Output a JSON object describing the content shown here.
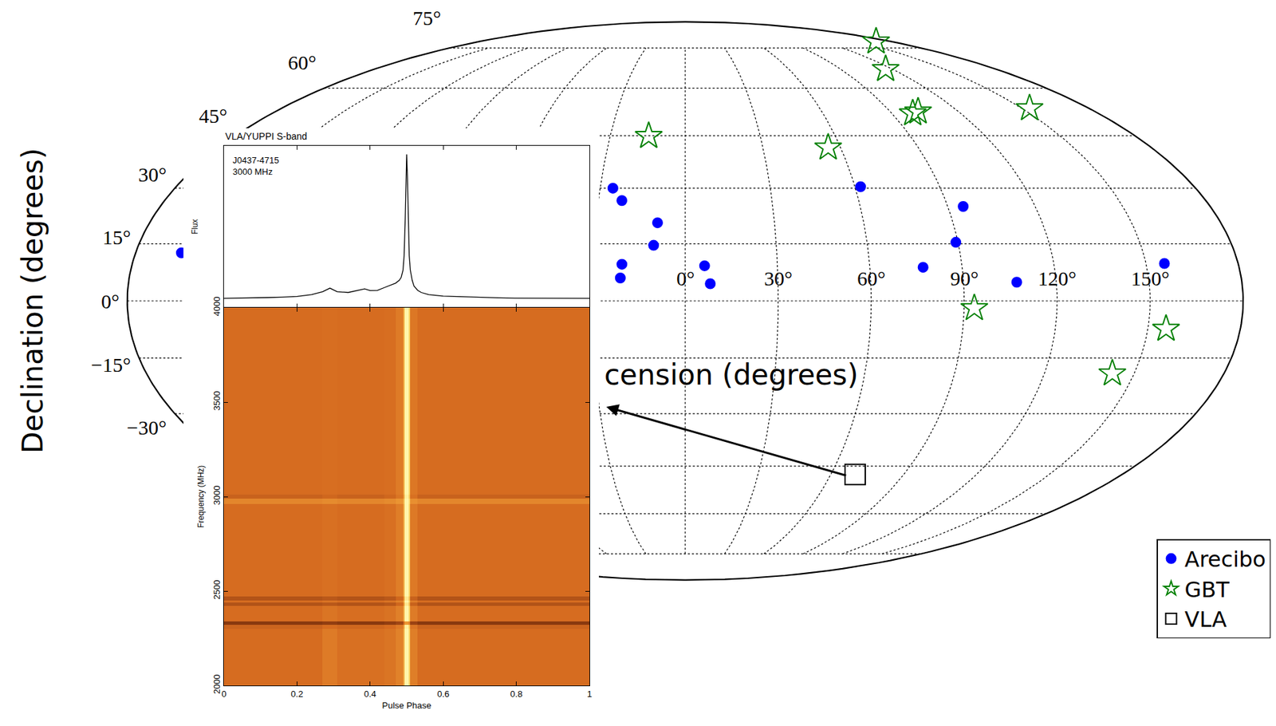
{
  "chart_data": [
    {
      "type": "scatter",
      "x_label": "cension (degrees)",
      "y_label": "Declination (degrees)",
      "xlim": [
        -180,
        180
      ],
      "ylim": [
        -90,
        90
      ],
      "xticks": [
        {
          "value": 0,
          "label": "0°"
        },
        {
          "value": 30,
          "label": "30°"
        },
        {
          "value": 60,
          "label": "60°"
        },
        {
          "value": 90,
          "label": "90°"
        },
        {
          "value": 120,
          "label": "120°"
        },
        {
          "value": 150,
          "label": "150°"
        }
      ],
      "yticks": [
        {
          "value": 75,
          "label": "75°"
        },
        {
          "value": 60,
          "label": "60°"
        },
        {
          "value": 45,
          "label": "45°"
        },
        {
          "value": 30,
          "label": "30°"
        },
        {
          "value": 15,
          "label": "15°"
        },
        {
          "value": 0,
          "label": "0°"
        },
        {
          "value": -15,
          "label": "−15°"
        },
        {
          "value": -30,
          "label": "−30°"
        }
      ],
      "grid": true,
      "legend": "lower right",
      "series": [
        {
          "name": "Arecibo",
          "color": "#0000ff",
          "marker": "circle",
          "x": [
            -25.5,
            -21.9,
            -9.3,
            -10.4,
            -20.6,
            -21.0,
            6.3,
            8.1,
            62.0,
            95.3,
            89.3,
            77.3,
            107.2,
            156.0,
            -165.0
          ],
          "values": [
            30.0,
            26.6,
            20.6,
            14.6,
            9.6,
            6.0,
            9.2,
            4.5,
            30.4,
            25.0,
            15.4,
            8.8,
            4.9,
            9.8,
            12.6
          ]
        },
        {
          "name": "GBT",
          "color": "#008000",
          "marker": "star-open",
          "x": [
            167.0,
            116.1,
            99.1,
            102.3,
            153.5,
            -14.6,
            55.2,
            93.3,
            155.9,
            142.7
          ],
          "values": [
            77.9,
            66.7,
            51.8,
            52.4,
            53.4,
            44.9,
            41.5,
            -1.9,
            -7.3,
            -19.1
          ]
        },
        {
          "name": "VLA",
          "color": "#000000",
          "marker": "square-open",
          "x": [
            70.0
          ],
          "values": [
            -47.5
          ]
        }
      ]
    },
    {
      "type": "line",
      "title": "VLA/YUPPI S-band",
      "annotations": [
        "J0437-4715",
        "3000 MHz"
      ],
      "y_label": "Flux",
      "color": "#000000",
      "xlim": [
        0,
        1
      ],
      "ylim": [
        -0.06,
        1.06
      ],
      "xticks": [
        0,
        0.2,
        0.4,
        0.6,
        0.8,
        1
      ],
      "tick_labels": false,
      "x": [
        0,
        0.04,
        0.08,
        0.12,
        0.16,
        0.2,
        0.24,
        0.27,
        0.29,
        0.31,
        0.34,
        0.37,
        0.385,
        0.4,
        0.42,
        0.44,
        0.45,
        0.46,
        0.47,
        0.48,
        0.485,
        0.49,
        0.493,
        0.496,
        0.498,
        0.5,
        0.502,
        0.504,
        0.507,
        0.51,
        0.515,
        0.52,
        0.53,
        0.54,
        0.56,
        0.6,
        0.65,
        0.7,
        0.75,
        0.8,
        0.85,
        0.9,
        0.95,
        1
      ],
      "values": [
        0.005,
        0.006,
        0.008,
        0.01,
        0.013,
        0.018,
        0.03,
        0.05,
        0.075,
        0.05,
        0.045,
        0.06,
        0.07,
        0.058,
        0.06,
        0.08,
        0.09,
        0.1,
        0.11,
        0.13,
        0.15,
        0.2,
        0.3,
        0.55,
        0.85,
        1.0,
        0.85,
        0.55,
        0.3,
        0.2,
        0.13,
        0.09,
        0.06,
        0.045,
        0.03,
        0.02,
        0.015,
        0.01,
        0.008,
        0.006,
        0.005,
        0.005,
        0.005,
        0.005
      ]
    },
    {
      "type": "heatmap",
      "x_label": "Pulse Phase",
      "y_label": "Frequency (MHz)",
      "xlim": [
        0,
        1
      ],
      "ylim": [
        2000,
        4000
      ],
      "xticks": [
        0,
        0.2,
        0.4,
        0.6,
        0.8,
        1
      ],
      "yticks": [
        2000,
        2500,
        3000,
        3500,
        4000
      ],
      "zlim": [
        0,
        1
      ],
      "x": [
        0,
        0.27,
        0.31,
        0.44,
        0.47,
        0.49,
        0.495,
        0.505,
        0.51,
        0.53,
        1
      ],
      "y": [
        2000,
        2300,
        2320,
        2340,
        2420,
        2440,
        2450,
        2470,
        2960,
        2990,
        3010,
        4000
      ],
      "cells": [
        [
          0.3,
          0.37,
          0.32,
          0.34,
          0.4,
          0.6,
          1.0,
          0.75,
          0.38,
          0.3
        ],
        [
          0.27,
          0.3,
          0.28,
          0.3,
          0.36,
          0.55,
          0.95,
          0.7,
          0.34,
          0.27
        ],
        [
          0.1,
          0.12,
          0.1,
          0.12,
          0.15,
          0.3,
          0.5,
          0.4,
          0.14,
          0.1
        ],
        [
          0.3,
          0.34,
          0.31,
          0.33,
          0.39,
          0.6,
          1.0,
          0.75,
          0.37,
          0.3
        ],
        [
          0.2,
          0.22,
          0.2,
          0.22,
          0.28,
          0.5,
          0.9,
          0.65,
          0.26,
          0.2
        ],
        [
          0.3,
          0.33,
          0.3,
          0.33,
          0.39,
          0.6,
          1.0,
          0.75,
          0.37,
          0.3
        ],
        [
          0.2,
          0.22,
          0.2,
          0.22,
          0.28,
          0.5,
          0.9,
          0.65,
          0.26,
          0.2
        ],
        [
          0.3,
          0.32,
          0.3,
          0.32,
          0.38,
          0.6,
          1.0,
          0.75,
          0.36,
          0.3
        ],
        [
          0.42,
          0.44,
          0.42,
          0.44,
          0.48,
          0.65,
          1.0,
          0.8,
          0.46,
          0.42
        ],
        [
          0.26,
          0.28,
          0.26,
          0.28,
          0.34,
          0.55,
          0.95,
          0.7,
          0.32,
          0.26
        ],
        [
          0.3,
          0.31,
          0.3,
          0.31,
          0.37,
          0.6,
          1.0,
          0.75,
          0.35,
          0.3
        ]
      ]
    }
  ]
}
